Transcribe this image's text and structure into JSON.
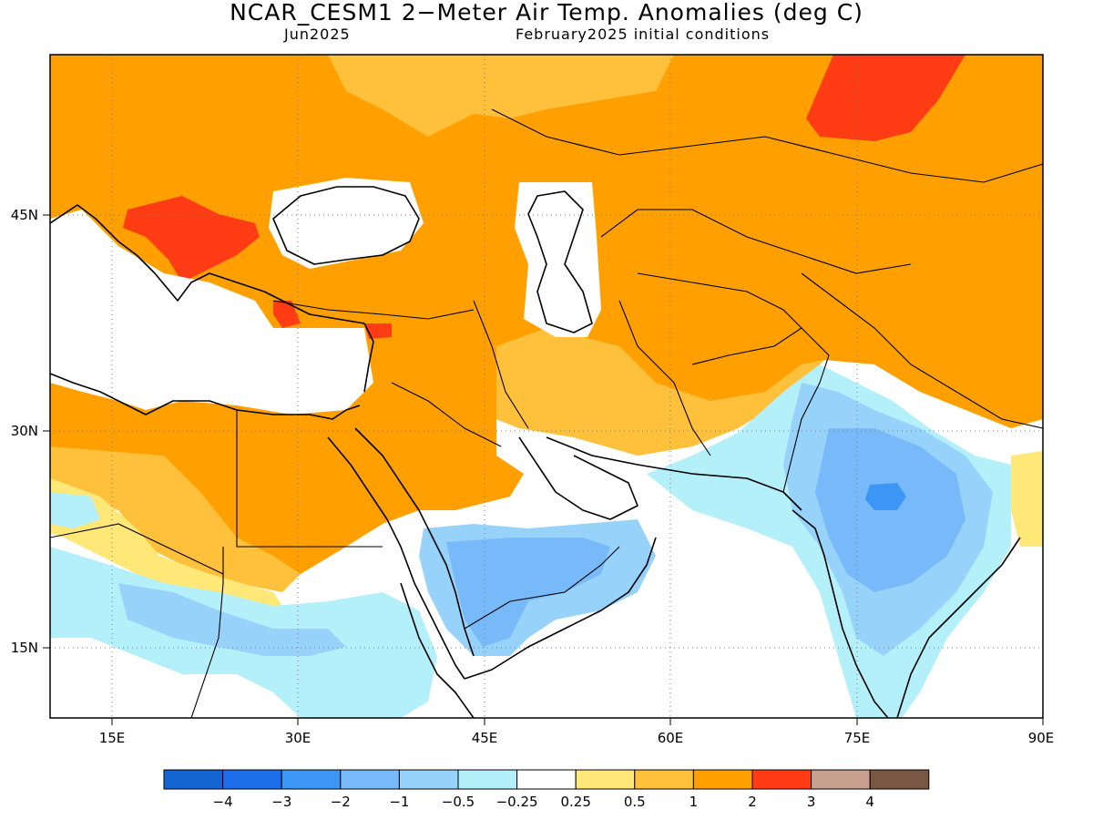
{
  "header": {
    "title": "NCAR_CESM1 2−Meter Air Temp. Anomalies (deg C)",
    "valid_month": "Jun2025",
    "init_conditions": "February2025 initial conditions"
  },
  "axes": {
    "lon_ticks": [
      "15E",
      "30E",
      "45E",
      "60E",
      "75E",
      "90E"
    ],
    "lat_ticks": [
      "45N",
      "30N",
      "15N"
    ]
  },
  "legend": {
    "colors": [
      "#1464d2",
      "#1e6eeb",
      "#3c96f5",
      "#78b9fa",
      "#96d2fa",
      "#b4f0fa",
      "#ffffff",
      "#ffe878",
      "#ffc03c",
      "#ffa000",
      "#ff3c14",
      "#c8a090",
      "#7a5644"
    ],
    "labels": [
      "−4",
      "−3",
      "−2",
      "−1",
      "−0.5",
      "−0.25",
      "0.25",
      "0.5",
      "1",
      "2",
      "3",
      "4"
    ]
  }
}
